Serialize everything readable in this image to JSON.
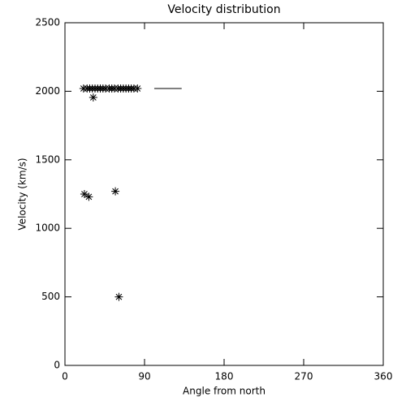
{
  "chart_data": {
    "type": "scatter",
    "title": "Velocity distribution",
    "x_label": "Angle from north",
    "y_label": "Velocity (km/s)",
    "xlim": [
      0,
      360
    ],
    "xticks": [
      0,
      90,
      180,
      270,
      360
    ],
    "ylim": [
      0,
      2500
    ],
    "yticks": [
      0,
      500,
      1000,
      1500,
      2000,
      2500
    ],
    "color": "#000000",
    "x": [
      21,
      25,
      28,
      31,
      34,
      37,
      40,
      43,
      46,
      50,
      53,
      56,
      60,
      63,
      66,
      69,
      72,
      75,
      78,
      82,
      32,
      22,
      27,
      57,
      61
    ],
    "y": [
      2020,
      2020,
      2020,
      2020,
      2020,
      2020,
      2020,
      2020,
      2020,
      2020,
      2020,
      2020,
      2020,
      2020,
      2020,
      2020,
      2020,
      2020,
      2020,
      2020,
      1955,
      1250,
      1230,
      1270,
      500
    ],
    "segment": {
      "x": [
        101,
        132
      ],
      "y": [
        2020,
        2020
      ]
    }
  }
}
